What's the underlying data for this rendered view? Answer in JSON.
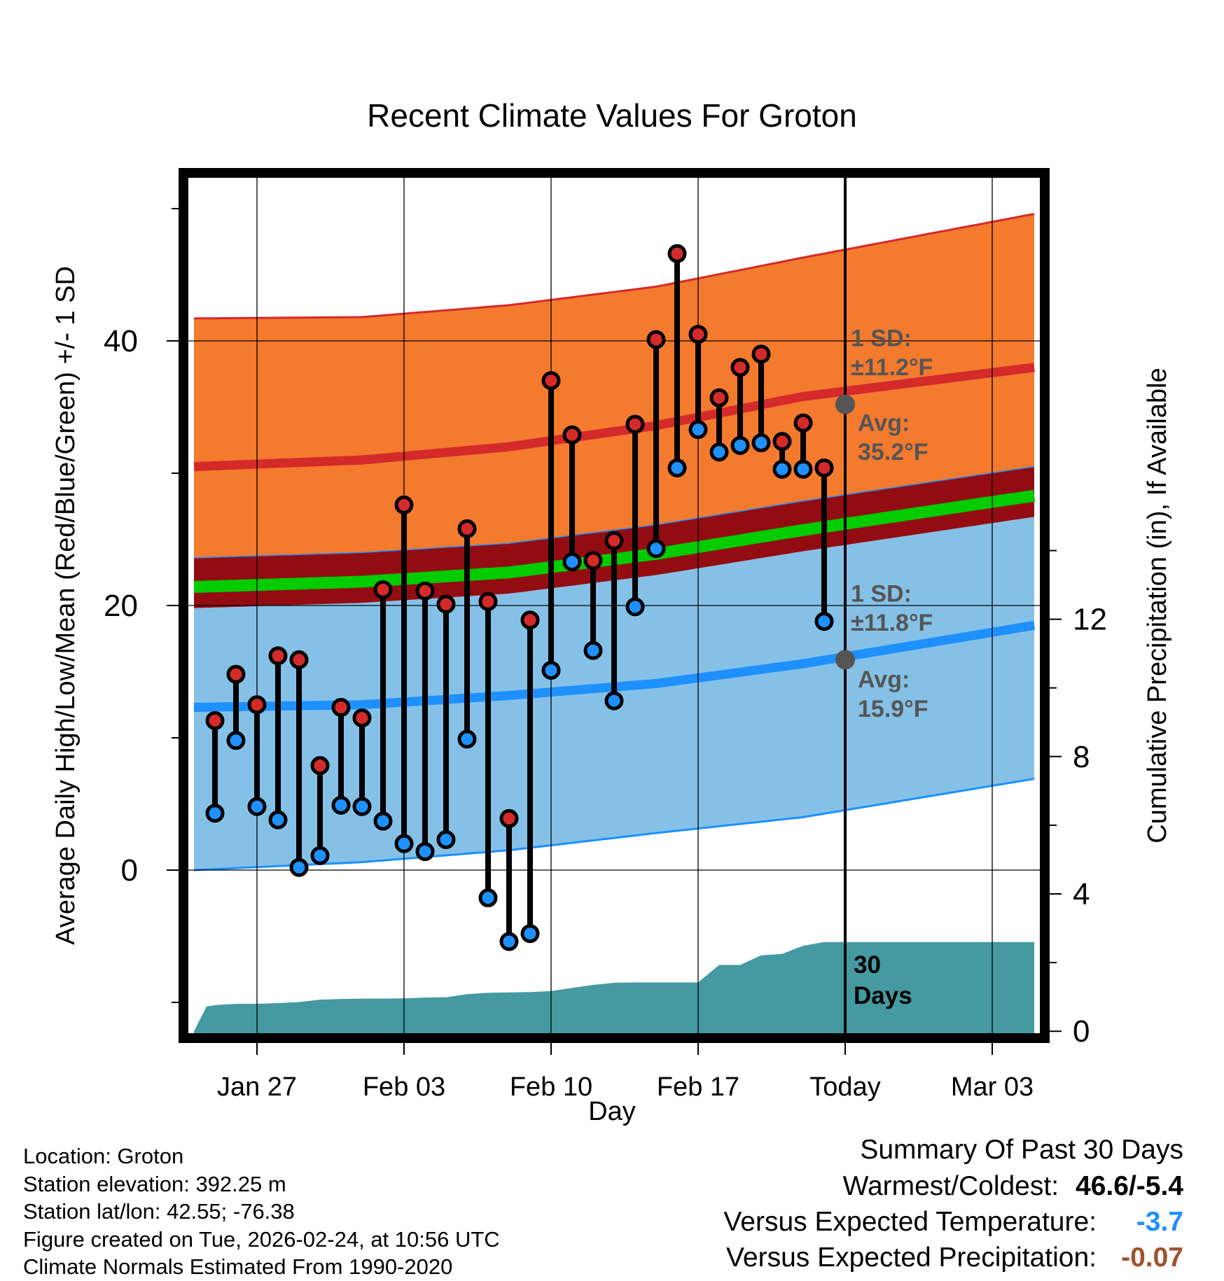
{
  "chart_data": {
    "type": "line",
    "title": "Recent Climate Values For Groton",
    "xlabel": "Day",
    "ylabel": "Average Daily High/Low/Mean (Red/Blue/Green) +/- 1 SD",
    "y2label": "Cumulative Precipitation (in), If Available",
    "xlim": [
      -3.5,
      37.5
    ],
    "ylim": [
      -12.7,
      52.7
    ],
    "y2lim": [
      -0.2,
      25
    ],
    "x_ticks": [
      {
        "x": 0,
        "label": "Jan 27"
      },
      {
        "x": 7,
        "label": "Feb 03"
      },
      {
        "x": 14,
        "label": "Feb 10"
      },
      {
        "x": 21,
        "label": "Feb 17"
      },
      {
        "x": 28,
        "label": "Today"
      },
      {
        "x": 35,
        "label": "Mar 03"
      }
    ],
    "y_ticks": [
      0,
      20,
      40
    ],
    "y2_ticks": [
      0,
      4,
      8,
      12
    ],
    "today_x": 28,
    "normals": {
      "x": [
        -3,
        5,
        12,
        19,
        26,
        37
      ],
      "avg_high": [
        30.5,
        31.0,
        32.0,
        33.6,
        35.8,
        38.0
      ],
      "avg_high_plus_sd": [
        41.7,
        41.8,
        42.7,
        44.1,
        46.3,
        49.6
      ],
      "avg_mean": [
        21.4,
        21.8,
        22.5,
        23.9,
        25.7,
        28.3
      ],
      "avg_low": [
        12.3,
        12.5,
        13.2,
        14.1,
        15.6,
        18.5
      ],
      "avg_low_minus_sd": [
        0.0,
        0.6,
        1.5,
        2.8,
        4.0,
        6.9
      ]
    },
    "series": [
      {
        "name": "Daily High",
        "color": "#d42a2a",
        "values": [
          11.3,
          14.8,
          12.5,
          16.2,
          15.9,
          7.9,
          12.3,
          11.5,
          21.2,
          27.6,
          21.1,
          20.1,
          25.8,
          20.3,
          3.9,
          18.9,
          37.0,
          32.9,
          23.4,
          24.9,
          33.7,
          40.1,
          46.6,
          40.5,
          35.7,
          38.0,
          39.0,
          32.4,
          33.8,
          30.4
        ]
      },
      {
        "name": "Daily Low",
        "color": "#1e90ff",
        "values": [
          4.3,
          9.8,
          4.8,
          3.8,
          0.2,
          1.1,
          4.9,
          4.8,
          3.7,
          2.0,
          1.4,
          2.3,
          9.9,
          -2.1,
          -5.4,
          -4.8,
          15.1,
          23.3,
          16.6,
          12.8,
          19.9,
          24.3,
          30.4,
          33.3,
          31.6,
          32.1,
          32.3,
          30.3,
          30.3,
          18.8
        ]
      }
    ],
    "days_x": [
      -2,
      -1,
      0,
      1,
      2,
      3,
      4,
      5,
      6,
      7,
      8,
      9,
      10,
      11,
      12,
      13,
      14,
      15,
      16,
      17,
      18,
      19,
      20,
      21,
      22,
      23,
      24,
      25,
      26,
      27
    ],
    "precip": {
      "x": [
        -3,
        -2.4,
        -2,
        -1,
        0,
        1,
        2,
        3,
        4,
        5,
        6,
        7,
        8,
        9,
        10,
        11,
        12,
        13,
        14,
        15,
        16,
        17,
        18,
        19,
        20,
        21,
        22,
        23,
        24,
        25,
        26,
        27,
        28,
        37
      ],
      "values": [
        0,
        0.72,
        0.76,
        0.8,
        0.8,
        0.82,
        0.85,
        0.92,
        0.94,
        0.95,
        0.95,
        0.96,
        0.98,
        0.99,
        1.08,
        1.12,
        1.13,
        1.14,
        1.17,
        1.26,
        1.35,
        1.41,
        1.42,
        1.42,
        1.42,
        1.42,
        1.93,
        1.93,
        2.21,
        2.25,
        2.49,
        2.6,
        2.6,
        2.6
      ],
      "label": "30 Days"
    },
    "annotations": {
      "high_sd_title": "1 SD:",
      "high_sd_value": "±11.2°F",
      "high_avg_title": "Avg:",
      "high_avg_value": "35.2°F",
      "high_avg_point": 35.2,
      "low_sd_title": "1 SD:",
      "low_sd_value": "±11.8°F",
      "low_avg_title": "Avg:",
      "low_avg_value": "15.9°F",
      "low_avg_point": 15.9
    },
    "colors": {
      "high_band": "#f47a2e",
      "high_line": "#d42a2a",
      "mean_band": "#920c12",
      "mean_line": "#00cc00",
      "low_band": "#85c1e7",
      "low_line": "#1e90ff",
      "precip": "#4599a1",
      "marker_outline": "#000000",
      "annotation": "#555555"
    }
  },
  "info": {
    "location": "Location: Groton",
    "elevation": "Station elevation: 392.25 m",
    "latlon": "Station lat/lon: 42.55; -76.38",
    "created": "Figure created on Tue, 2026-02-24, at 10:56 UTC",
    "normals": "Climate Normals Estimated From 1990-2020"
  },
  "summary": {
    "heading": "Summary Of Past 30 Days",
    "warmest_label": "Warmest/Coldest:",
    "warmest_value": "46.6/-5.4",
    "temp_label": "Versus Expected Temperature:",
    "temp_value": "-3.7",
    "temp_color": "#1e90ff",
    "precip_label": "Versus Expected Precipitation:",
    "precip_value": "-0.07",
    "precip_color": "#a0522d"
  }
}
